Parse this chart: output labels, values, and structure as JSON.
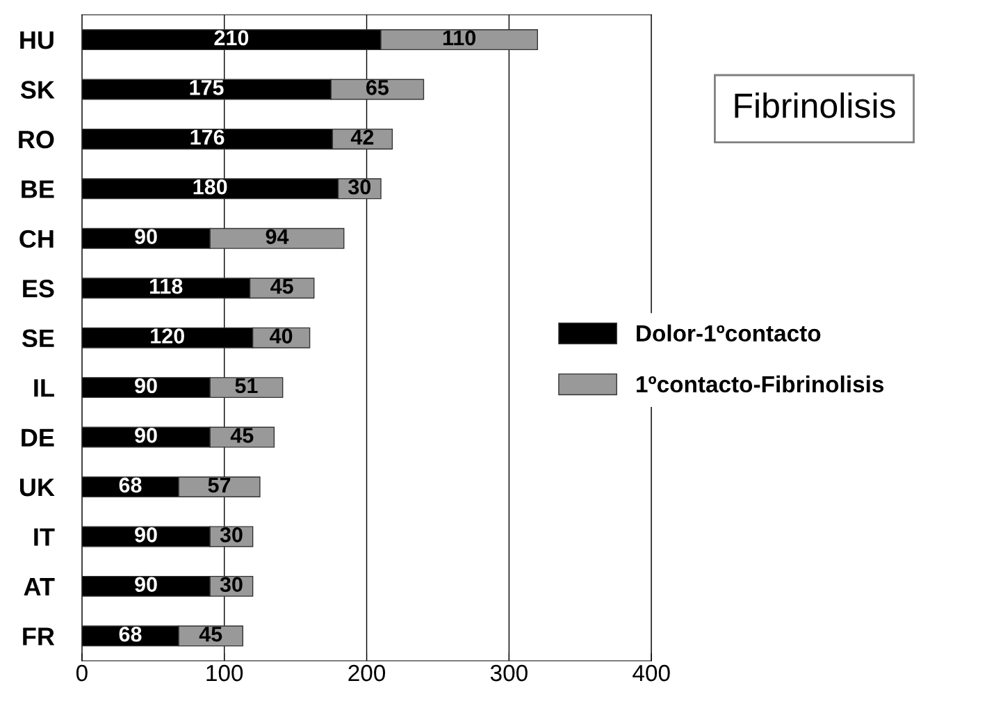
{
  "chart_data": {
    "type": "bar",
    "orientation": "horizontal",
    "stacked": true,
    "title": "Fibrinolisis",
    "categories": [
      "HU",
      "SK",
      "RO",
      "BE",
      "CH",
      "ES",
      "SE",
      "IL",
      "DE",
      "UK",
      "IT",
      "AT",
      "FR"
    ],
    "series": [
      {
        "name": "Dolor-1ºcontacto",
        "color": "#000000",
        "values": [
          210,
          175,
          176,
          180,
          90,
          118,
          120,
          90,
          90,
          68,
          90,
          90,
          68
        ]
      },
      {
        "name": "1ºcontacto-Fibrinolisis",
        "color": "#999999",
        "values": [
          110,
          65,
          42,
          30,
          94,
          45,
          40,
          51,
          45,
          57,
          30,
          30,
          45
        ]
      }
    ],
    "xlim": [
      0,
      400
    ],
    "xticks": [
      0,
      100,
      200,
      300,
      400
    ],
    "grid": "x",
    "legend": "right",
    "data_labels": true
  }
}
